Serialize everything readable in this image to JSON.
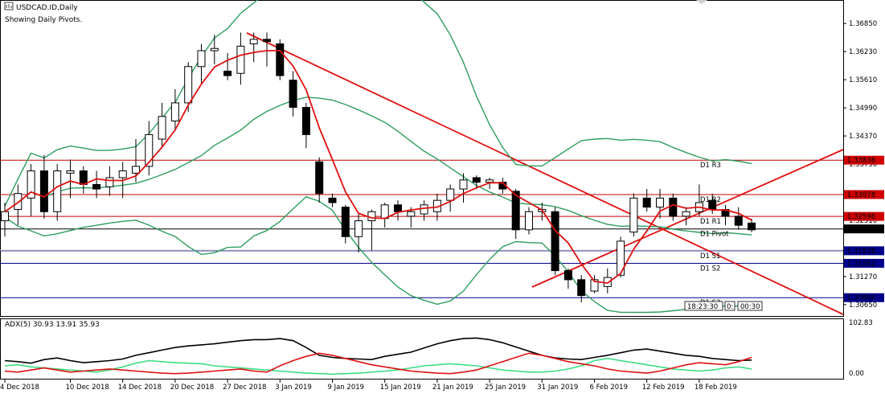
{
  "header": {
    "symbol_title": "USDCAD.ID,Daily",
    "pivots_note": "Showing Daily Pivots."
  },
  "timer": {
    "time": "18:23:30",
    "sep": "0:",
    "countdown": "00:30"
  },
  "colors": {
    "ma_red": "#e01010",
    "bollinger": "#2e9e5e",
    "resistance": "#c00000",
    "support": "#00008b",
    "adx_main": "#000000",
    "adx_plus": "#3ddc84",
    "adx_minus": "#e01010",
    "price_label_bg": "#000000",
    "label_red": "#d00000",
    "label_blue": "#00008b"
  },
  "chart_data": [
    {
      "type": "candlestick",
      "symbol": "USDCAD.ID",
      "timeframe": "Daily",
      "ylim": [
        1.304,
        1.3735
      ],
      "y_ticks": [
        1.3685,
        1.3623,
        1.3561,
        1.3499,
        1.3437,
        1.3375,
        1.3251,
        1.3127,
        1.3065
      ],
      "x_tick_labels": [
        "4 Dec 2018",
        "10 Dec 2018",
        "14 Dec 2018",
        "20 Dec 2018",
        "27 Dec 2018",
        "3 Jan 2019",
        "9 Jan 2019",
        "15 Jan 2019",
        "21 Jan 2019",
        "25 Jan 2019",
        "31 Jan 2019",
        "6 Feb 2019",
        "12 Feb 2019",
        "18 Feb 2019"
      ],
      "x_tick_index": [
        0,
        5,
        9,
        13,
        17,
        21,
        25,
        29,
        33,
        37,
        41,
        45,
        49,
        53
      ],
      "candles": [
        [
          1.325,
          1.329,
          1.3215,
          1.327
        ],
        [
          1.3275,
          1.333,
          1.324,
          1.331
        ],
        [
          1.33,
          1.3375,
          1.326,
          1.336
        ],
        [
          1.336,
          1.3395,
          1.3255,
          1.327
        ],
        [
          1.327,
          1.3375,
          1.325,
          1.336
        ],
        [
          1.3355,
          1.3385,
          1.33,
          1.336
        ],
        [
          1.336,
          1.337,
          1.331,
          1.333
        ],
        [
          1.333,
          1.336,
          1.33,
          1.332
        ],
        [
          1.3325,
          1.337,
          1.3305,
          1.3345
        ],
        [
          1.3345,
          1.338,
          1.33,
          1.336
        ],
        [
          1.3355,
          1.343,
          1.3335,
          1.337
        ],
        [
          1.337,
          1.347,
          1.335,
          1.344
        ],
        [
          1.343,
          1.351,
          1.341,
          1.348
        ],
        [
          1.347,
          1.354,
          1.345,
          1.351
        ],
        [
          1.351,
          1.36,
          1.349,
          1.359
        ],
        [
          1.359,
          1.364,
          1.355,
          1.3625
        ],
        [
          1.3625,
          1.366,
          1.3595,
          1.363
        ],
        [
          1.358,
          1.362,
          1.356,
          1.357
        ],
        [
          1.3575,
          1.3665,
          1.355,
          1.3635
        ],
        [
          1.364,
          1.3665,
          1.36,
          1.365
        ],
        [
          1.365,
          1.3665,
          1.359,
          1.3645
        ],
        [
          1.364,
          1.365,
          1.356,
          1.357
        ],
        [
          1.356,
          1.358,
          1.348,
          1.35
        ],
        [
          1.35,
          1.351,
          1.341,
          1.344
        ],
        [
          1.338,
          1.339,
          1.329,
          1.331
        ],
        [
          1.33,
          1.331,
          1.328,
          1.329
        ],
        [
          1.328,
          1.3285,
          1.32,
          1.3215
        ],
        [
          1.3215,
          1.3265,
          1.318,
          1.325
        ],
        [
          1.325,
          1.3275,
          1.3185,
          1.327
        ],
        [
          1.3255,
          1.329,
          1.3235,
          1.3285
        ],
        [
          1.3285,
          1.3295,
          1.325,
          1.327
        ],
        [
          1.326,
          1.328,
          1.3235,
          1.327
        ],
        [
          1.3265,
          1.3295,
          1.325,
          1.3285
        ],
        [
          1.327,
          1.331,
          1.325,
          1.3295
        ],
        [
          1.3295,
          1.333,
          1.327,
          1.332
        ],
        [
          1.332,
          1.3355,
          1.329,
          1.334
        ],
        [
          1.3345,
          1.335,
          1.332,
          1.3335
        ],
        [
          1.3335,
          1.3345,
          1.332,
          1.334
        ],
        [
          1.3335,
          1.3345,
          1.331,
          1.332
        ],
        [
          1.3315,
          1.332,
          1.321,
          1.323
        ],
        [
          1.323,
          1.328,
          1.322,
          1.327
        ],
        [
          1.327,
          1.329,
          1.325,
          1.3275
        ],
        [
          1.327,
          1.328,
          1.313,
          1.314
        ],
        [
          1.314,
          1.3145,
          1.31,
          1.312
        ],
        [
          1.312,
          1.313,
          1.307,
          1.3085
        ],
        [
          1.3095,
          1.313,
          1.309,
          1.312
        ],
        [
          1.3105,
          1.3145,
          1.309,
          1.3125
        ],
        [
          1.313,
          1.3215,
          1.3125,
          1.3205
        ],
        [
          1.3225,
          1.331,
          1.3215,
          1.33
        ],
        [
          1.33,
          1.332,
          1.327,
          1.328
        ],
        [
          1.328,
          1.332,
          1.3255,
          1.33
        ],
        [
          1.33,
          1.331,
          1.325,
          1.326
        ],
        [
          1.326,
          1.328,
          1.324,
          1.327
        ],
        [
          1.327,
          1.333,
          1.326,
          1.329
        ],
        [
          1.3295,
          1.331,
          1.3265,
          1.3275
        ],
        [
          1.3275,
          1.3285,
          1.324,
          1.326
        ],
        [
          1.326,
          1.328,
          1.323,
          1.324
        ],
        [
          1.3245,
          1.3255,
          1.3225,
          1.323
        ]
      ],
      "pivot_lines": [
        {
          "name": "D1 R3",
          "value": 1.33836,
          "kind": "resistance"
        },
        {
          "name": "D1 R2",
          "value": 1.33078,
          "kind": "resistance"
        },
        {
          "name": "D1 R1",
          "value": 1.32596,
          "kind": "resistance"
        },
        {
          "name": "D1 Pivot",
          "value": 1.3232,
          "kind": "pivot"
        },
        {
          "name": "D1 S1",
          "value": 1.31838,
          "kind": "support"
        },
        {
          "name": "D1 S2",
          "value": 1.31562,
          "kind": "support"
        },
        {
          "name": "D1 S3",
          "value": 1.30804,
          "kind": "support"
        }
      ],
      "price_labels": [
        {
          "text": "1.33836",
          "style": "red"
        },
        {
          "text": "1.33078",
          "style": "red"
        },
        {
          "text": "1.32596",
          "style": "red"
        },
        {
          "text": "1.32320",
          "style": "black"
        },
        {
          "text": "1.31838",
          "style": "blue"
        },
        {
          "text": "1.31562",
          "style": "blue"
        },
        {
          "text": "1.30804",
          "style": "blue"
        }
      ]
    },
    {
      "type": "line",
      "title": "ADX(5) 30.93 13.91 35.93",
      "ylim": [
        0,
        102.83
      ],
      "y_ticks": [
        "102.83",
        "0.00"
      ],
      "series": [
        {
          "key": "adx",
          "values": [
            30,
            28,
            25,
            32,
            35,
            30,
            26,
            28,
            30,
            33,
            40,
            45,
            50,
            55,
            58,
            60,
            62,
            65,
            68,
            70,
            70,
            72,
            68,
            55,
            40,
            36,
            34,
            33,
            32,
            38,
            42,
            46,
            54,
            62,
            68,
            72,
            73,
            70,
            64,
            56,
            48,
            40,
            35,
            33,
            32,
            36,
            40,
            45,
            50,
            52,
            48,
            44,
            40,
            38,
            34,
            32,
            30,
            31
          ]
        },
        {
          "key": "plus_di",
          "values": [
            20,
            22,
            18,
            16,
            14,
            12,
            10,
            8,
            12,
            18,
            25,
            30,
            28,
            26,
            25,
            24,
            20,
            18,
            16,
            14,
            12,
            10,
            8,
            6,
            5,
            4,
            5,
            6,
            8,
            10,
            12,
            16,
            20,
            22,
            24,
            22,
            20,
            16,
            12,
            10,
            8,
            8,
            10,
            14,
            20,
            30,
            34,
            30,
            26,
            22,
            18,
            14,
            12,
            10,
            12,
            16,
            18,
            14
          ]
        },
        {
          "key": "minus_di",
          "values": [
            10,
            8,
            12,
            16,
            12,
            8,
            10,
            12,
            14,
            12,
            10,
            8,
            6,
            5,
            6,
            8,
            10,
            12,
            14,
            10,
            8,
            20,
            30,
            38,
            44,
            40,
            34,
            28,
            22,
            18,
            14,
            10,
            8,
            6,
            5,
            8,
            12,
            20,
            28,
            36,
            44,
            40,
            34,
            28,
            24,
            20,
            14,
            10,
            8,
            6,
            10,
            16,
            22,
            26,
            24,
            22,
            28,
            36
          ]
        }
      ]
    }
  ]
}
